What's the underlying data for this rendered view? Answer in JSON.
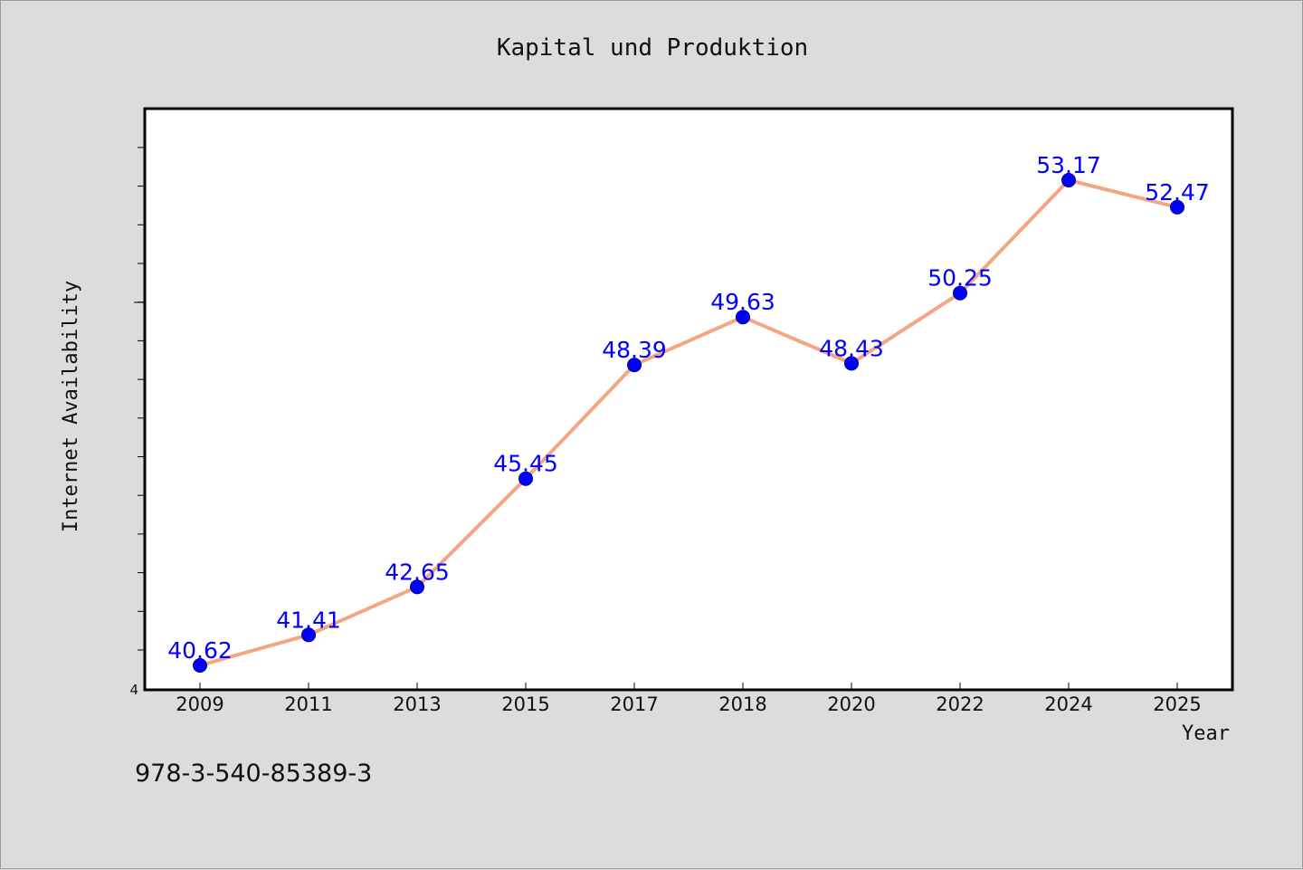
{
  "chart_data": {
    "type": "line",
    "title": "Kapital und Produktion",
    "xlabel": "Year",
    "ylabel": "Internet Availability",
    "categories": [
      "2009",
      "2011",
      "2013",
      "2015",
      "2017",
      "2018",
      "2020",
      "2022",
      "2024",
      "2025"
    ],
    "series": [
      {
        "values": [
          40.62,
          41.41,
          42.65,
          45.45,
          48.39,
          49.63,
          48.43,
          50.25,
          53.17,
          52.47
        ],
        "data_labels": [
          "40.62",
          "41.41",
          "42.65",
          "45.45",
          "48.39",
          "49.63",
          "48.43",
          "50.25",
          "53.17",
          "52.47"
        ]
      }
    ],
    "ylim": [
      40,
      55
    ],
    "y_tick_labels": [
      "4"
    ],
    "grid": false,
    "line_color": "#f4a582",
    "marker_color": "#0000ff",
    "label_color": "#0000ff",
    "background_color": "#dcdcdc",
    "plot_background": "#ffffff"
  },
  "footer": {
    "isbn": "978-3-540-85389-3"
  }
}
